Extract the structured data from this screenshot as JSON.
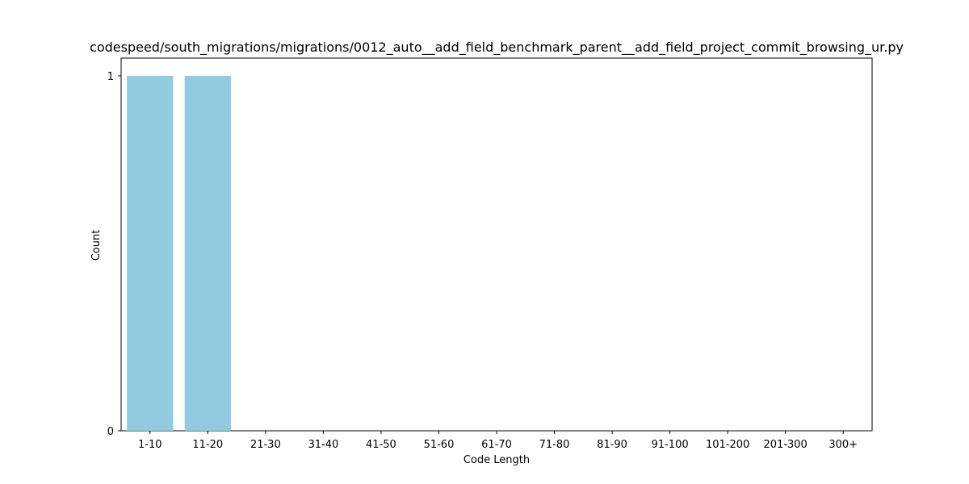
{
  "chart_data": {
    "type": "bar",
    "title": "codespeed/south_migrations/migrations/0012_auto__add_field_benchmark_parent__add_field_project_commit_browsing_ur.py",
    "xlabel": "Code Length",
    "ylabel": "Count",
    "categories": [
      "1-10",
      "11-20",
      "21-30",
      "31-40",
      "41-50",
      "51-60",
      "61-70",
      "71-80",
      "81-90",
      "91-100",
      "101-200",
      "201-300",
      "300+"
    ],
    "values": [
      1,
      1,
      0,
      0,
      0,
      0,
      0,
      0,
      0,
      0,
      0,
      0,
      0
    ],
    "ylim": [
      0,
      1
    ],
    "yticks": [
      "0",
      "1"
    ],
    "bar_color": "#92cadf",
    "grid": false
  }
}
